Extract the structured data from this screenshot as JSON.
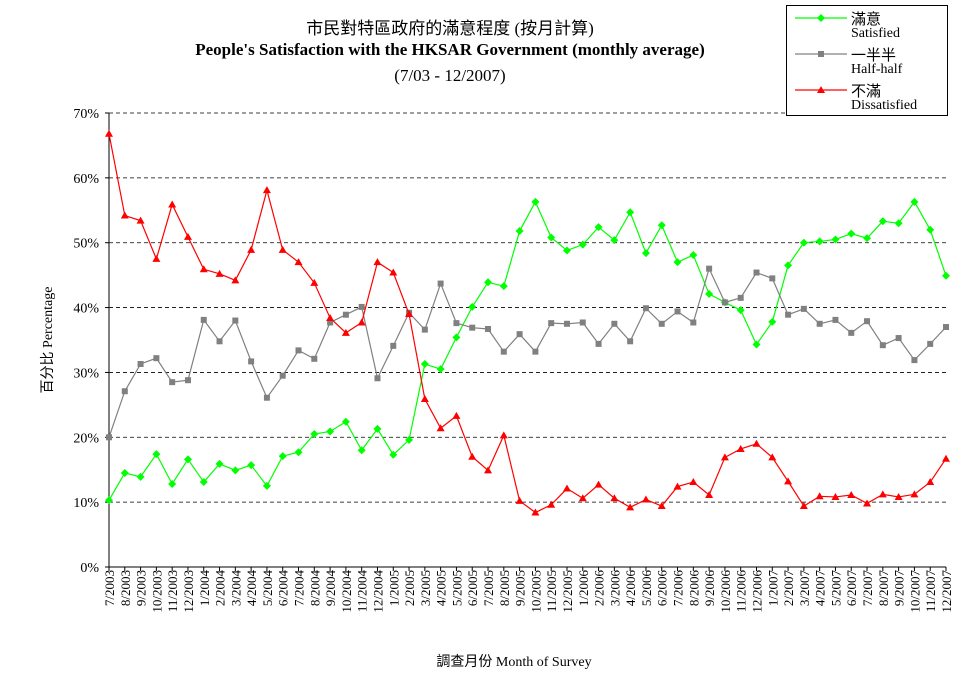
{
  "chart_data": {
    "type": "line",
    "title": "市民對特區政府的滿意程度 (按月計算)",
    "subtitle": "People's Satisfaction with the HKSAR Government (monthly average)",
    "period": "(7/03 - 12/2007)",
    "xlabel": "調查月份 Month of Survey",
    "ylabel": "百分比 Percentage",
    "ylim": [
      0,
      70
    ],
    "yticks": [
      "0%",
      "10%",
      "20%",
      "30%",
      "40%",
      "50%",
      "60%",
      "70%"
    ],
    "grid": "horizontal dashed",
    "legend_position": "top-right",
    "x": [
      "7/2003",
      "8/2003",
      "9/2003",
      "10/2003",
      "11/2003",
      "12/2003",
      "1/2004",
      "2/2004",
      "3/2004",
      "4/2004",
      "5/2004",
      "6/2004",
      "7/2004",
      "8/2004",
      "9/2004",
      "10/2004",
      "11/2004",
      "12/2004",
      "1/2005",
      "2/2005",
      "3/2005",
      "4/2005",
      "5/2005",
      "6/2005",
      "7/2005",
      "8/2005",
      "9/2005",
      "10/2005",
      "11/2005",
      "12/2005",
      "1/2006",
      "2/2006",
      "3/2006",
      "4/2006",
      "5/2006",
      "6/2006",
      "7/2006",
      "8/2006",
      "9/2006",
      "10/2006",
      "11/2006",
      "12/2006",
      "1/2007",
      "2/2007",
      "3/2007",
      "4/2007",
      "5/2007",
      "6/2007",
      "7/2007",
      "8/2007",
      "9/2007",
      "10/2007",
      "11/2007",
      "12/2007"
    ],
    "series": [
      {
        "name": "滿意",
        "name_en": "Satisfied",
        "color": "#00ff00",
        "marker": "diamond",
        "values": [
          10.3,
          14.5,
          13.9,
          17.4,
          12.8,
          16.6,
          13.1,
          15.9,
          14.9,
          15.7,
          12.5,
          17.1,
          17.7,
          20.5,
          20.9,
          22.4,
          18.0,
          21.3,
          17.3,
          19.6,
          31.3,
          30.5,
          35.4,
          40.1,
          43.9,
          43.3,
          51.8,
          56.3,
          50.8,
          48.8,
          49.7,
          52.4,
          50.4,
          54.7,
          48.4,
          52.7,
          47.0,
          48.1,
          42.1,
          40.8,
          39.6,
          34.3,
          37.8,
          46.5,
          50.0,
          50.2,
          50.5,
          51.4,
          50.7,
          53.3,
          53.0,
          56.3,
          52.0,
          44.9
        ]
      },
      {
        "name": "一半半",
        "name_en": "Half-half",
        "color": "#808080",
        "marker": "square",
        "values": [
          20.0,
          27.1,
          31.3,
          32.2,
          28.5,
          28.8,
          38.1,
          34.8,
          38.0,
          31.7,
          26.1,
          29.5,
          33.4,
          32.1,
          37.7,
          38.9,
          40.1,
          29.1,
          34.1,
          39.2,
          36.6,
          43.7,
          37.6,
          36.9,
          36.7,
          33.2,
          35.9,
          33.2,
          37.6,
          37.5,
          37.7,
          34.4,
          37.5,
          34.8,
          39.9,
          37.5,
          39.4,
          37.7,
          46.0,
          40.8,
          41.5,
          45.4,
          44.5,
          38.9,
          39.8,
          37.5,
          38.1,
          36.1,
          37.9,
          34.2,
          35.3,
          31.9,
          34.4,
          37.0
        ]
      },
      {
        "name": "不滿",
        "name_en": "Dissatisfied",
        "color": "#ff0000",
        "marker": "triangle",
        "values": [
          66.8,
          54.2,
          53.4,
          47.5,
          55.9,
          50.9,
          45.9,
          45.2,
          44.2,
          48.9,
          58.1,
          48.9,
          47.0,
          43.8,
          38.4,
          36.1,
          37.7,
          47.0,
          45.4,
          39.0,
          25.9,
          21.4,
          23.3,
          17.0,
          14.9,
          20.3,
          10.2,
          8.4,
          9.6,
          12.1,
          10.6,
          12.7,
          10.6,
          9.2,
          10.4,
          9.4,
          12.4,
          13.1,
          11.1,
          16.9,
          18.2,
          19.0,
          16.9,
          13.2,
          9.4,
          10.9,
          10.8,
          11.1,
          9.8,
          11.2,
          10.8,
          11.2,
          13.1,
          16.7
        ]
      }
    ]
  }
}
